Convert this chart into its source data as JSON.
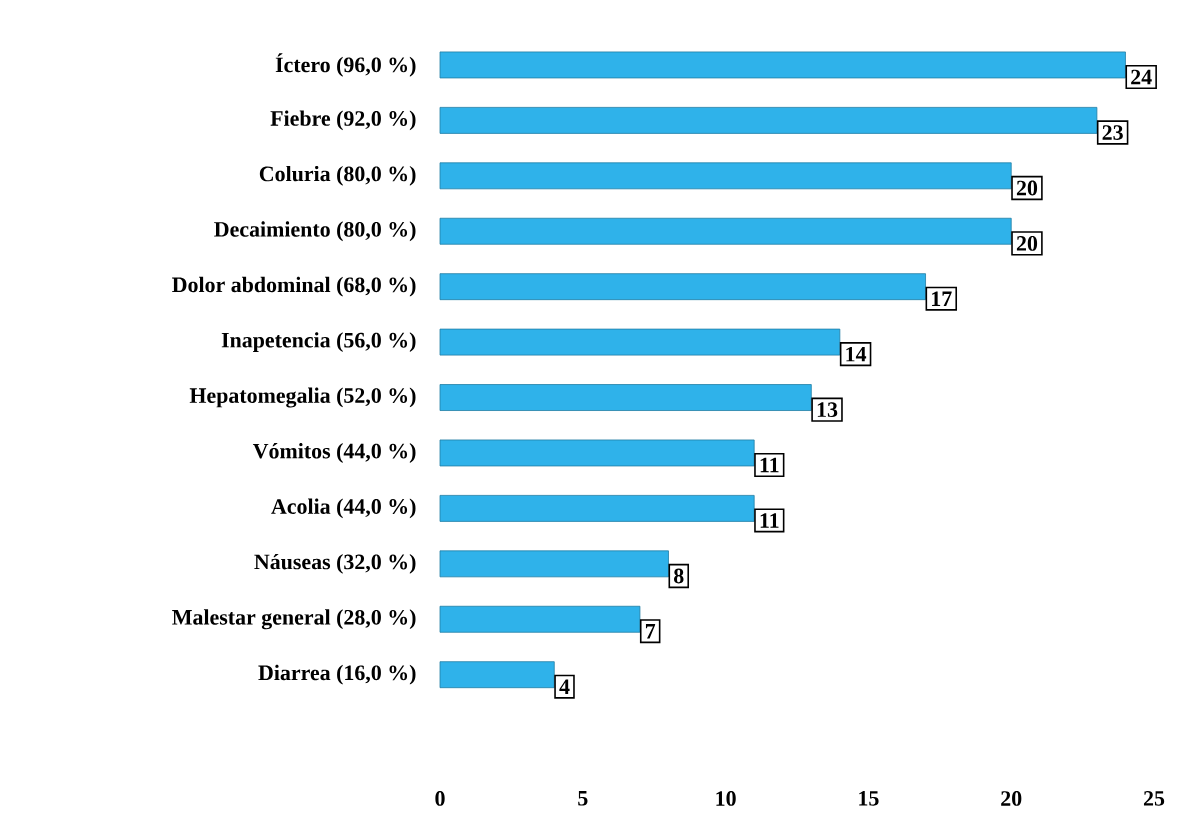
{
  "chart_data": {
    "type": "bar",
    "orientation": "horizontal",
    "categories": [
      "Íctero (96,0 %)",
      "Fiebre (92,0 %)",
      "Coluria (80,0 %)",
      "Decaimiento (80,0 %)",
      "Dolor abdominal (68,0 %)",
      "Inapetencia (56,0 %)",
      "Hepatomegalia (52,0 %)",
      "Vómitos (44,0 %)",
      "Acolia (44,0 %)",
      "Náuseas (32,0 %)",
      "Malestar general (28,0 %)",
      "Diarrea (16,0 %)"
    ],
    "values": [
      24,
      23,
      20,
      20,
      17,
      14,
      13,
      11,
      11,
      8,
      7,
      4
    ],
    "color": "#2fb2ea",
    "xlim": [
      0,
      25
    ],
    "xticks": [
      0,
      5,
      10,
      15,
      20,
      25
    ],
    "data_labels": true
  }
}
